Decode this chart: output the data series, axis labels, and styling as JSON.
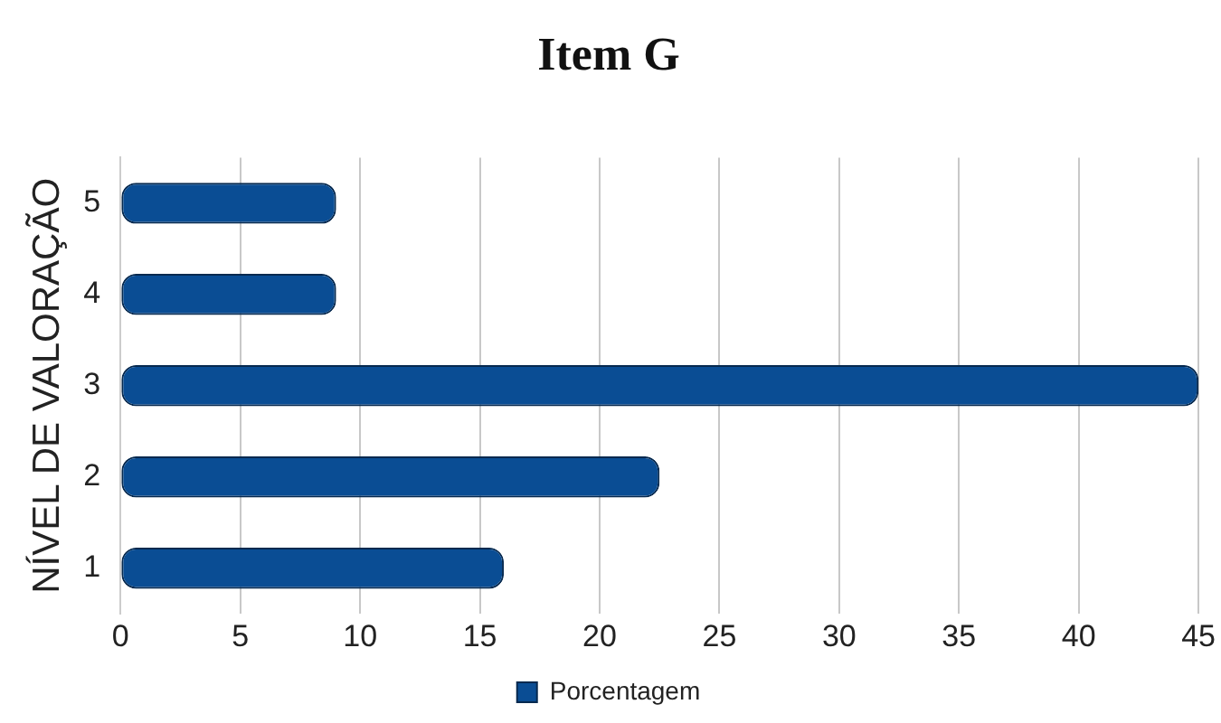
{
  "chart_data": {
    "type": "bar",
    "orientation": "horizontal",
    "title": "Item G",
    "ylabel": "NÍVEL DE VALORAÇÃO",
    "categories": [
      "5",
      "4",
      "3",
      "2",
      "1"
    ],
    "series": [
      {
        "name": "Porcentagem",
        "color": "#0a4d94",
        "values": [
          9,
          9,
          45,
          22.5,
          16
        ]
      }
    ],
    "xlim": [
      0,
      45
    ],
    "xticks": [
      0,
      5,
      10,
      15,
      20,
      25,
      30,
      35,
      40,
      45
    ],
    "grid": "x",
    "legend": "bottom"
  }
}
